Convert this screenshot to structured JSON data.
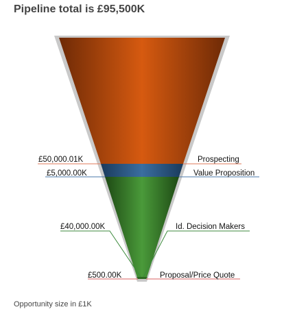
{
  "chart_data": {
    "type": "funnel",
    "title": "Pipeline total is £95,500K",
    "footnote": "Opportunity size in £1K",
    "stages": [
      {
        "name": "Prospecting",
        "value_label": "£50,000.01K",
        "value": 50000.01,
        "color": "#c8521a",
        "line_color": "#e0785a"
      },
      {
        "name": "Value Proposition",
        "value_label": "£5,000.00K",
        "value": 5000,
        "color": "#2e5e8e",
        "line_color": "#4a78a8"
      },
      {
        "name": "Id. Decision Makers",
        "value_label": "£40,000.00K",
        "value": 40000,
        "color": "#3f8a2f",
        "line_color": "#3c8a3c"
      },
      {
        "name": "Proposal/Price Quote",
        "value_label": "£500.00K",
        "value": 500,
        "color": "#5a9a3a",
        "line_color": "#d86060"
      }
    ]
  }
}
